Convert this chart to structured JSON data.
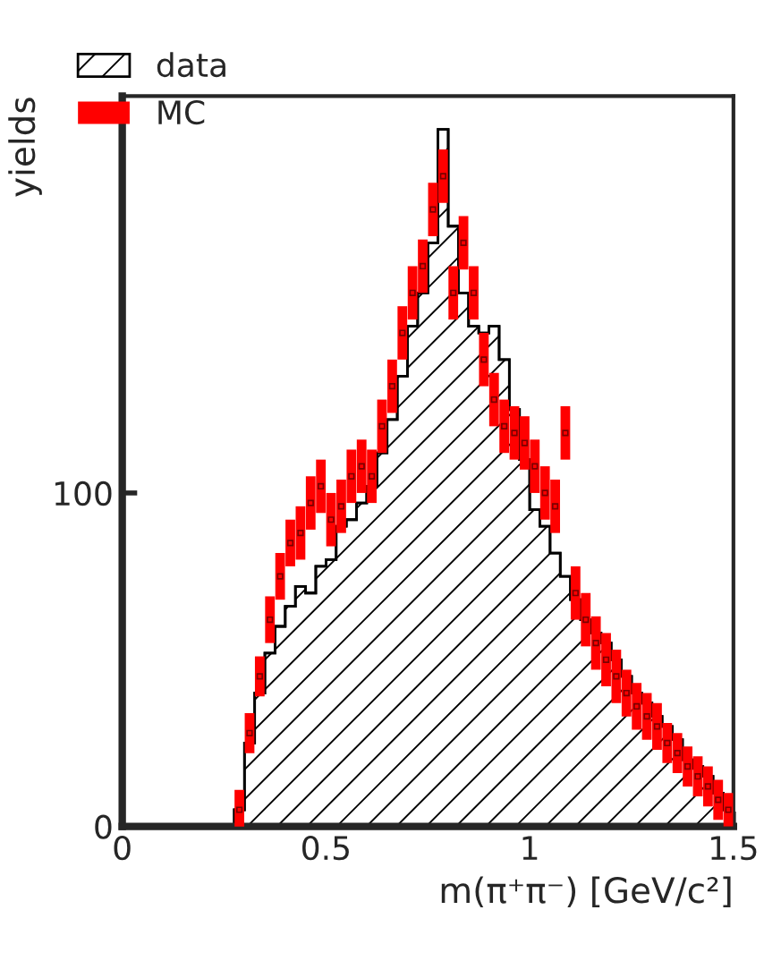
{
  "chart_data": {
    "type": "histogram",
    "xlabel": "m(π⁺π⁻) [GeV/c²]",
    "ylabel": "yields",
    "bins": [
      0.275,
      0.3,
      0.325,
      0.35,
      0.375,
      0.4,
      0.425,
      0.45,
      0.475,
      0.5,
      0.525,
      0.55,
      0.575,
      0.6,
      0.625,
      0.65,
      0.675,
      0.7,
      0.725,
      0.75,
      0.775,
      0.8,
      0.825,
      0.85,
      0.875,
      0.9,
      0.925,
      0.95,
      0.975,
      1.0,
      1.025,
      1.05,
      1.075,
      1.1,
      1.125,
      1.15,
      1.175,
      1.2,
      1.225,
      1.25,
      1.275,
      1.3,
      1.325,
      1.35,
      1.375,
      1.4,
      1.425,
      1.45,
      1.475,
      1.5
    ],
    "series": [
      {
        "name": "data",
        "color": "#000000",
        "values": [
          5,
          25,
          40,
          52,
          60,
          66,
          72,
          70,
          78,
          80,
          90,
          92,
          97,
          102,
          112,
          122,
          135,
          150,
          160,
          175,
          209,
          180,
          160,
          150,
          148,
          150,
          140,
          125,
          110,
          95,
          90,
          82,
          75,
          68,
          62,
          58,
          55,
          50,
          45,
          40,
          37,
          33,
          30,
          26,
          20,
          18,
          15,
          10,
          5
        ]
      },
      {
        "name": "MC",
        "type": "scatter",
        "marker": "square",
        "color": "#ff0000",
        "x": [
          0.2875,
          0.3125,
          0.3375,
          0.3625,
          0.3875,
          0.4125,
          0.4375,
          0.4625,
          0.4875,
          0.5125,
          0.5375,
          0.5625,
          0.5875,
          0.6125,
          0.6375,
          0.6625,
          0.6875,
          0.7125,
          0.7375,
          0.7625,
          0.7875,
          0.8125,
          0.8375,
          0.8625,
          0.8875,
          0.9125,
          0.9375,
          0.9625,
          0.9875,
          1.0125,
          1.0375,
          1.0625,
          1.0875,
          1.1125,
          1.1375,
          1.1625,
          1.1875,
          1.2125,
          1.2375,
          1.2625,
          1.2875,
          1.3125,
          1.3375,
          1.3625,
          1.3875,
          1.4125,
          1.4375,
          1.4625,
          1.4875
        ],
        "values": [
          5,
          28,
          45,
          62,
          75,
          85,
          88,
          97,
          102,
          92,
          96,
          105,
          108,
          105,
          120,
          132,
          148,
          160,
          168,
          185,
          195,
          160,
          175,
          160,
          140,
          128,
          120,
          118,
          115,
          108,
          100,
          96,
          118,
          70,
          62,
          55,
          50,
          45,
          40,
          36,
          33,
          30,
          25,
          22,
          18,
          15,
          12,
          8,
          5
        ],
        "errors": [
          6,
          6,
          6,
          7,
          7,
          7,
          8,
          8,
          8,
          8,
          8,
          8,
          8,
          8,
          8,
          8,
          8,
          8,
          8,
          8,
          8,
          8,
          8,
          8,
          8,
          8,
          8,
          8,
          8,
          8,
          8,
          8,
          8,
          8,
          8,
          8,
          8,
          8,
          7,
          7,
          7,
          7,
          6,
          6,
          6,
          6,
          6,
          6,
          5
        ]
      }
    ],
    "xlim": [
      0,
      1.5
    ],
    "ylim": [
      0,
      219
    ],
    "xticks": [
      0,
      0.5,
      1,
      1.5
    ],
    "yticks": [
      0,
      100
    ],
    "grid": false,
    "legend": "top left"
  }
}
